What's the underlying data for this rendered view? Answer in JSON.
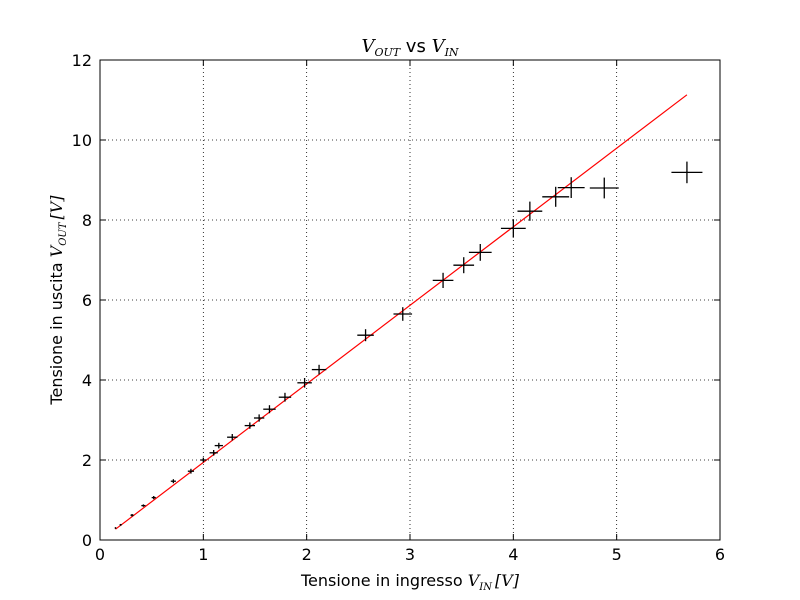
{
  "chart_data": {
    "type": "scatter",
    "title": {
      "v_symbol": "V",
      "out_sub": "OUT",
      "vs_text": " vs ",
      "in_sub": "IN"
    },
    "xlabel": {
      "text": "Tensione in ingresso ",
      "symbol": "V",
      "sub": "IN",
      "unit": "[V]"
    },
    "ylabel": {
      "text": "Tensione in uscita ",
      "symbol": "V",
      "sub": "OUT",
      "unit": "[V]"
    },
    "xlim": [
      0,
      6
    ],
    "ylim": [
      0,
      12
    ],
    "x_ticks": [
      "0",
      "1",
      "2",
      "3",
      "4",
      "5",
      "6"
    ],
    "y_ticks": [
      "0",
      "2",
      "4",
      "6",
      "8",
      "10",
      "12"
    ],
    "grid": true,
    "colors": {
      "data": "#000000",
      "fit": "#ff0000"
    },
    "series": [
      {
        "kind": "errorbar",
        "x": [
          0.15,
          0.2,
          0.31,
          0.42,
          0.52,
          0.71,
          0.88,
          1.0,
          1.1,
          1.15,
          1.28,
          1.45,
          1.54,
          1.64,
          1.79,
          1.98,
          2.12,
          2.57,
          2.93,
          3.32,
          3.52,
          3.68,
          4.0,
          4.16,
          4.41,
          4.56,
          4.88,
          5.68
        ],
        "y": [
          0.3,
          0.38,
          0.62,
          0.86,
          1.06,
          1.47,
          1.72,
          2.0,
          2.18,
          2.36,
          2.57,
          2.86,
          3.05,
          3.27,
          3.57,
          3.93,
          4.26,
          5.12,
          5.65,
          6.49,
          6.87,
          7.19,
          7.79,
          8.22,
          8.58,
          8.81,
          8.8,
          9.19
        ],
        "xerr": [
          0.005,
          0.01,
          0.015,
          0.02,
          0.02,
          0.025,
          0.03,
          0.03,
          0.04,
          0.04,
          0.05,
          0.05,
          0.05,
          0.06,
          0.06,
          0.07,
          0.07,
          0.08,
          0.09,
          0.1,
          0.1,
          0.11,
          0.12,
          0.12,
          0.13,
          0.13,
          0.14,
          0.15
        ],
        "yerr": [
          0.01,
          0.02,
          0.03,
          0.03,
          0.04,
          0.05,
          0.06,
          0.06,
          0.07,
          0.07,
          0.08,
          0.08,
          0.09,
          0.1,
          0.11,
          0.12,
          0.12,
          0.15,
          0.17,
          0.19,
          0.2,
          0.21,
          0.23,
          0.24,
          0.25,
          0.26,
          0.26,
          0.27
        ]
      },
      {
        "kind": "fit-line",
        "x": [
          0.15,
          5.68
        ],
        "y": [
          0.27,
          11.13
        ]
      }
    ]
  }
}
